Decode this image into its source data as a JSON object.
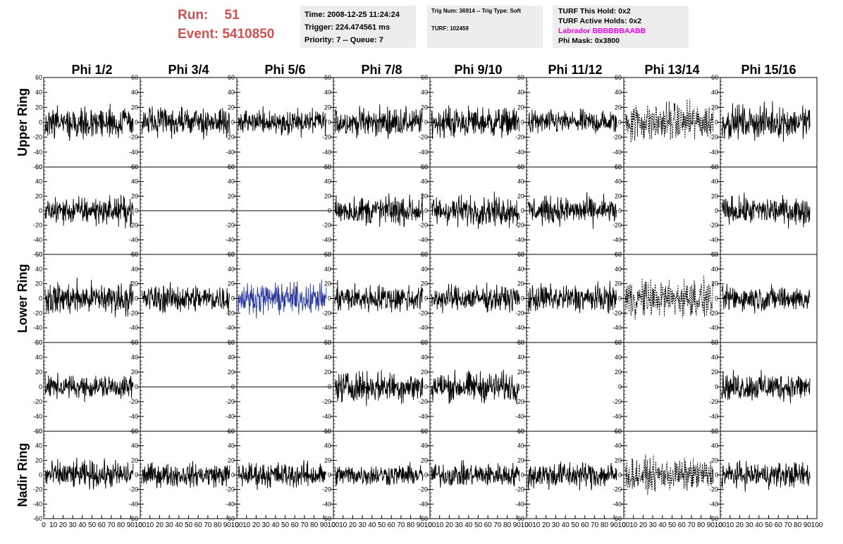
{
  "header": {
    "run_label": "Run:",
    "run_value": "51",
    "event_label": "Event:",
    "event_value": "5410850",
    "time_box": {
      "time": "Time: 2008-12-25 11:24:24",
      "trigger": "Trigger: 224.474561 ms",
      "priority": "Priority: 7 -- Queue: 7"
    },
    "trig_box": {
      "trig": "Trig Num: 36914 -- Trig Type: Soft",
      "turf": "TURF: 102459"
    },
    "turf_box": {
      "this_hold": "TURF This Hold: 0x2",
      "active_holds": "TURF Active Holds: 0x2",
      "labrador": "Labrador BBBBBBAABB",
      "phi_mask": "Phi Mask: 0x3800"
    }
  },
  "chart_data": {
    "type": "line",
    "columns": [
      "Phi 1/2",
      "Phi 3/4",
      "Phi 5/6",
      "Phi 7/8",
      "Phi 9/10",
      "Phi 11/12",
      "Phi 13/14",
      "Phi 15/16"
    ],
    "rows": [
      "Upper Ring",
      "",
      "Lower Ring",
      "",
      "Nadir Ring"
    ],
    "ylim": [
      -60,
      60
    ],
    "y_ticks": [
      -60,
      -40,
      -20,
      0,
      20,
      40,
      60
    ],
    "xlim": [
      0,
      100
    ],
    "x_ticks": [
      0,
      10,
      20,
      30,
      40,
      50,
      60,
      70,
      80,
      90,
      100
    ],
    "x_tick_labels": [
      "0",
      "10",
      "20",
      "30",
      "40",
      "50",
      "60",
      "70",
      "80",
      "90",
      "100"
    ],
    "samples": 260,
    "colors": {
      "trace": "#000000",
      "highlight": "#2b3a9c"
    },
    "amplitudes": [
      [
        14,
        13,
        12,
        13,
        14,
        11,
        18,
        15
      ],
      [
        13,
        0,
        0,
        14,
        14,
        13,
        0,
        13
      ],
      [
        15,
        13,
        14,
        13,
        12,
        13,
        18,
        12
      ],
      [
        11,
        0,
        0,
        14,
        14,
        0,
        0,
        13
      ],
      [
        13,
        11,
        12,
        10,
        11,
        13,
        15,
        12
      ]
    ],
    "styles": [
      [
        "solid",
        "solid",
        "solid",
        "solid",
        "solid",
        "solid",
        "dashed",
        "solid"
      ],
      [
        "solid",
        "flat",
        "flat",
        "solid",
        "solid",
        "solid",
        "empty",
        "solid"
      ],
      [
        "solid",
        "solid",
        "highlight",
        "solid",
        "solid",
        "solid",
        "dashed",
        "solid"
      ],
      [
        "solid",
        "flat",
        "flat",
        "solid",
        "solid",
        "empty",
        "empty",
        "solid"
      ],
      [
        "solid",
        "solid",
        "solid",
        "solid",
        "solid",
        "solid",
        "dashed",
        "solid"
      ]
    ]
  }
}
